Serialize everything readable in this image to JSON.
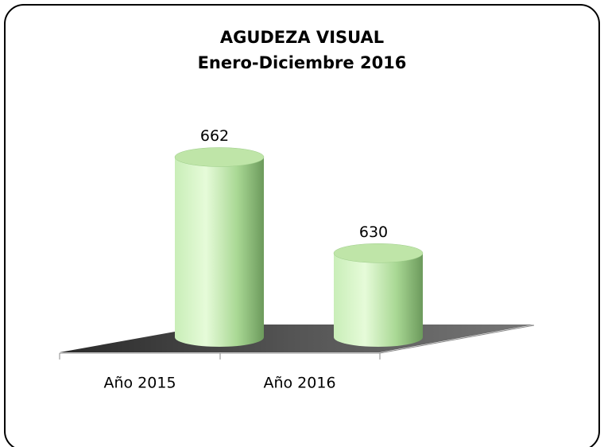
{
  "chart_data": {
    "type": "bar3d",
    "title": "AGUDEZA VISUAL",
    "subtitle": "Enero-Diciembre 2016",
    "categories": [
      "Año 2015",
      "Año 2016"
    ],
    "values": [
      662,
      630
    ],
    "color": "#b8e6a6",
    "ylim": [
      602,
      682
    ]
  }
}
